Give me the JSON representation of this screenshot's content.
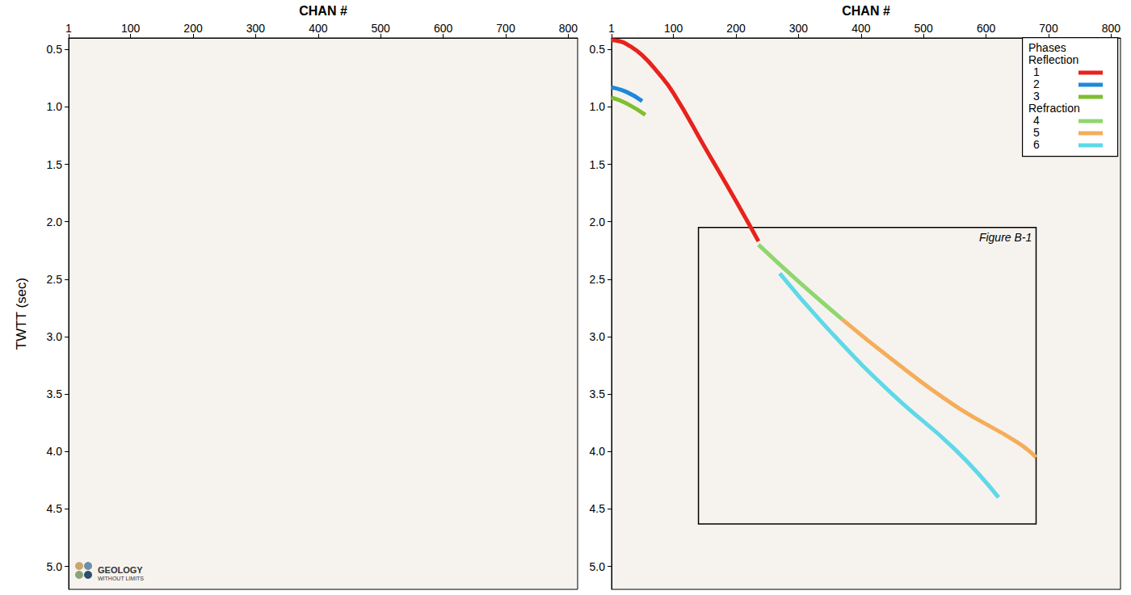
{
  "chart_data": {
    "type": "line",
    "x_label": "CHAN #",
    "y_label": "TWTT (sec)",
    "xlim": [
      1,
      815
    ],
    "ylim": [
      0.4,
      5.2
    ],
    "xticks": [
      1,
      100,
      200,
      300,
      400,
      500,
      600,
      700,
      800
    ],
    "yticks": [
      0.5,
      {
        "value": 1,
        "label": "1.0"
      },
      1.5,
      {
        "value": 2,
        "label": "2.0"
      },
      2.5,
      {
        "value": 3,
        "label": "3.0"
      },
      3.5,
      {
        "value": 4,
        "label": "4.0"
      },
      4.5,
      {
        "value": 5,
        "label": "5.0"
      }
    ],
    "legend": "upper right",
    "panels": [
      {
        "logo": [
          "GEOLOGY",
          "WITHOUT LIMITS"
        ],
        "series": []
      },
      {
        "legend_title": "Phases",
        "series": [
          {
            "name": "1",
            "group": "Reflection",
            "color": "#e8221c",
            "x": [
              1,
              15,
              30,
              50,
              75,
              100,
              150,
              200,
              236
            ],
            "values": [
              0.42,
              0.43,
              0.47,
              0.55,
              0.7,
              0.88,
              1.35,
              1.82,
              2.17
            ]
          },
          {
            "name": "2",
            "group": "Reflection",
            "color": "#1f88d8",
            "x": [
              1,
              25,
              50
            ],
            "values": [
              0.83,
              0.87,
              0.95
            ]
          },
          {
            "name": "3",
            "group": "Reflection",
            "color": "#7dbf2e",
            "x": [
              1,
              25,
              55
            ],
            "values": [
              0.92,
              0.97,
              1.07
            ]
          },
          {
            "name": "4",
            "group": "Refraction",
            "color": "#8fd66f",
            "x": [
              236,
              300,
              370
            ],
            "values": [
              2.2,
              2.52,
              2.85
            ]
          },
          {
            "name": "5",
            "group": "Refraction",
            "color": "#f5ad5b",
            "x": [
              370,
              450,
              550,
              650,
              680
            ],
            "values": [
              2.85,
              3.2,
              3.6,
              3.92,
              4.05
            ]
          },
          {
            "name": "6",
            "group": "Refraction",
            "color": "#5fd8e8",
            "x": [
              270,
              350,
              450,
              550,
              620
            ],
            "values": [
              2.45,
              2.95,
              3.5,
              3.98,
              4.4
            ]
          }
        ],
        "box": {
          "label": "Figure B-1",
          "x": [
            140,
            680
          ],
          "y": [
            2.05,
            4.63
          ]
        }
      }
    ]
  }
}
